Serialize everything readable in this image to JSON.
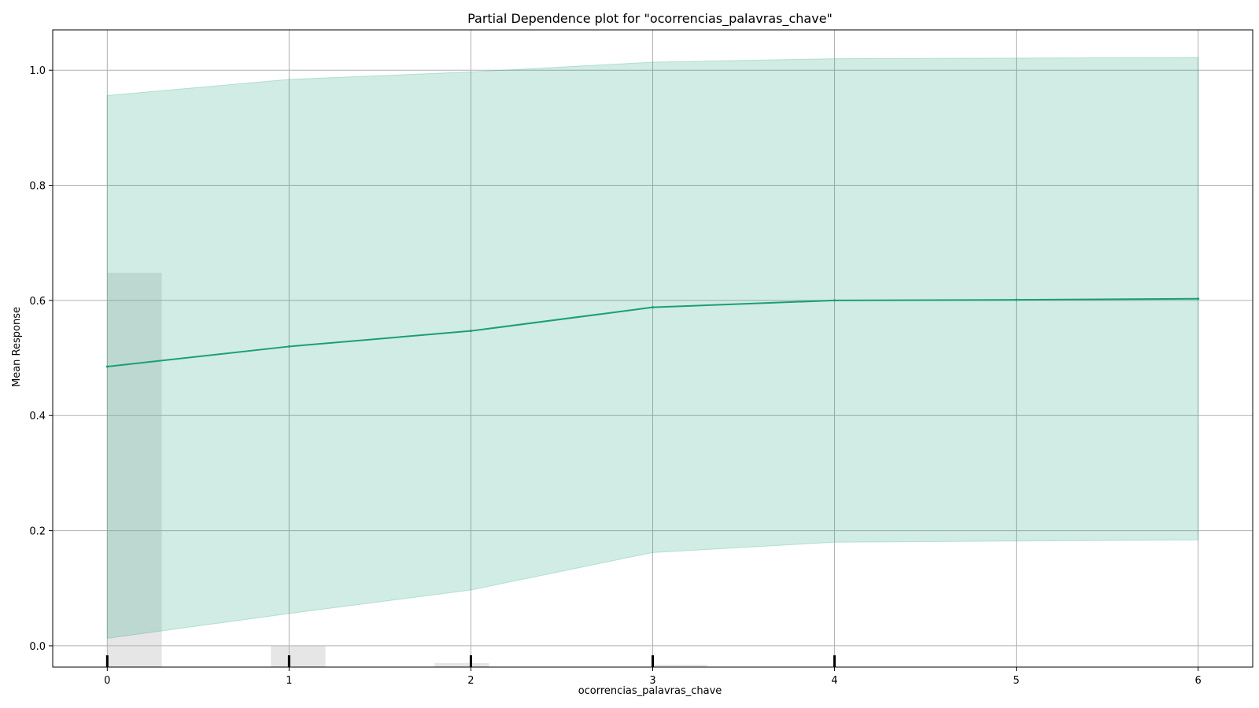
{
  "chart_data": {
    "type": "line",
    "title": "Partial Dependence plot for \"ocorrencias_palavras_chave\"",
    "xlabel": "ocorrencias_palavras_chave",
    "ylabel": "Mean Response",
    "x": [
      0,
      1,
      2,
      3,
      4,
      5,
      6
    ],
    "series": [
      {
        "values": [
          0.485,
          0.52,
          0.547,
          0.588,
          0.6,
          0.601,
          0.603
        ],
        "lower": [
          0.013,
          0.056,
          0.097,
          0.162,
          0.18,
          0.182,
          0.184
        ],
        "upper": [
          0.956,
          0.984,
          0.997,
          1.014,
          1.02,
          1.021,
          1.022
        ],
        "color": "#1b9e77"
      }
    ],
    "histogram": {
      "bins": [
        {
          "x0": 0.0,
          "x1": 0.3,
          "value": 0.648
        },
        {
          "x0": 0.9,
          "x1": 1.2,
          "value": 0.0
        },
        {
          "x0": 1.8,
          "x1": 2.1,
          "value": -0.03
        },
        {
          "x0": 3.0,
          "x1": 3.3,
          "value": -0.035
        }
      ],
      "color": "#b8b8b8"
    },
    "rug_x": [
      0,
      1,
      2,
      3,
      4
    ],
    "x_ticks": [
      "0",
      "1",
      "2",
      "3",
      "4",
      "5",
      "6"
    ],
    "y_ticks": [
      "0.0",
      "0.2",
      "0.4",
      "0.6",
      "0.8",
      "1.0"
    ],
    "xlim": [
      -0.3,
      6.3
    ],
    "ylim": [
      -0.037,
      1.07
    ],
    "grid": true
  }
}
